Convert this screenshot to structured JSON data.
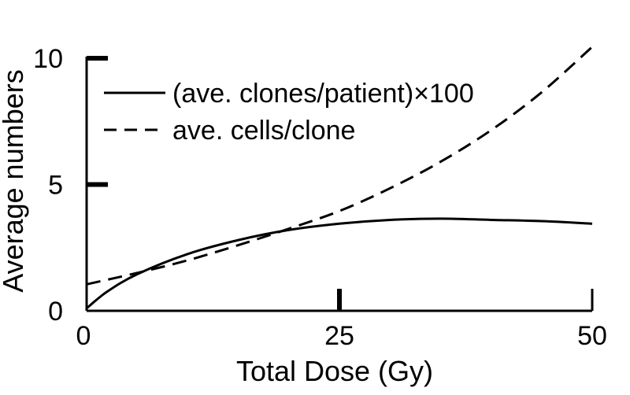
{
  "chart_data": {
    "type": "line",
    "xlabel": "Total Dose (Gy)",
    "ylabel": "Average numbers",
    "xlim": [
      0,
      50
    ],
    "ylim": [
      0,
      10
    ],
    "x_ticks": [
      {
        "value": 0,
        "label": "0"
      },
      {
        "value": 25,
        "label": "25"
      },
      {
        "value": 50,
        "label": "50"
      }
    ],
    "y_ticks": [
      {
        "value": 0,
        "label": "0"
      },
      {
        "value": 5,
        "label": "5"
      },
      {
        "value": 10,
        "label": "10"
      }
    ],
    "legend_position": "top-left",
    "grid": false,
    "series": [
      {
        "name": "(ave. clones/patient)×100",
        "style": "solid",
        "x": [
          0,
          2,
          5,
          10,
          15,
          20,
          25,
          30,
          35,
          40,
          45,
          50
        ],
        "y": [
          0.1,
          0.75,
          1.45,
          2.25,
          2.8,
          3.2,
          3.45,
          3.6,
          3.65,
          3.6,
          3.55,
          3.45
        ]
      },
      {
        "name": "ave. cells/clone",
        "style": "dashed",
        "x": [
          0,
          5,
          10,
          15,
          20,
          25,
          30,
          35,
          40,
          45,
          50
        ],
        "y": [
          1.05,
          1.5,
          2.0,
          2.6,
          3.25,
          3.95,
          4.85,
          5.9,
          7.15,
          8.65,
          10.45
        ]
      }
    ]
  }
}
